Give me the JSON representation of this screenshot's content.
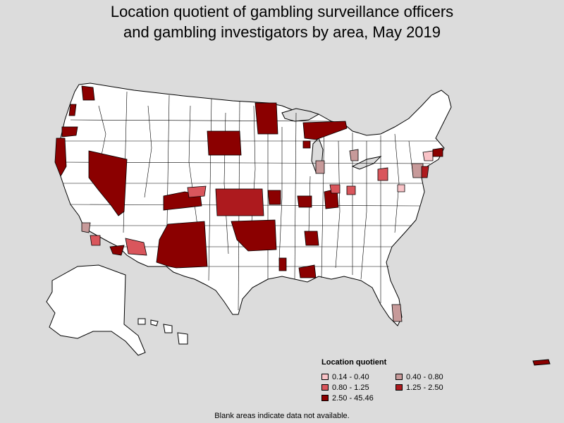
{
  "title": {
    "line1": "Location quotient of gambling surveillance officers",
    "line2": "and gambling investigators by area, May 2019"
  },
  "legend": {
    "title": "Location quotient",
    "items": [
      {
        "label": "0.14 - 0.40",
        "color": "#f9c3c7"
      },
      {
        "label": "0.40 - 0.80",
        "color": "#c79a9a"
      },
      {
        "label": "0.80 - 1.25",
        "color": "#d9565c"
      },
      {
        "label": "1.25 - 2.50",
        "color": "#ad1a1e"
      },
      {
        "label": "2.50 - 45.46",
        "color": "#8b0000"
      }
    ]
  },
  "footnote": "Blank areas indicate data not available.",
  "colors": {
    "background": "#dcdcdc",
    "land": "#ffffff",
    "border": "#000000"
  }
}
